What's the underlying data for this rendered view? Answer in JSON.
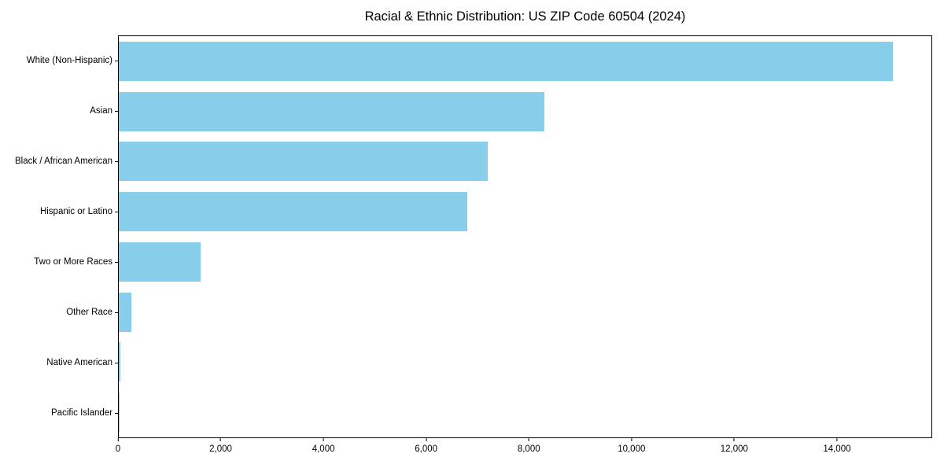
{
  "chart_data": {
    "type": "bar",
    "orientation": "horizontal",
    "title": "Racial & Ethnic Distribution: US ZIP Code 60504 (2024)",
    "xlabel": "",
    "ylabel": "",
    "categories": [
      "White (Non-Hispanic)",
      "Asian",
      "Black / African American",
      "Hispanic or Latino",
      "Two or More Races",
      "Other Race",
      "Native American",
      "Pacific Islander"
    ],
    "values": [
      15100,
      8300,
      7200,
      6800,
      1600,
      250,
      30,
      10
    ],
    "xlim": [
      0,
      15855
    ],
    "xticks": [
      0,
      2000,
      4000,
      6000,
      8000,
      10000,
      12000,
      14000
    ],
    "xtick_labels": [
      "0",
      "2,000",
      "4,000",
      "6,000",
      "8,000",
      "10,000",
      "12,000",
      "14,000"
    ],
    "bar_color": "#87CEEB",
    "grid": false,
    "legend": "none",
    "background": "#ffffff"
  }
}
